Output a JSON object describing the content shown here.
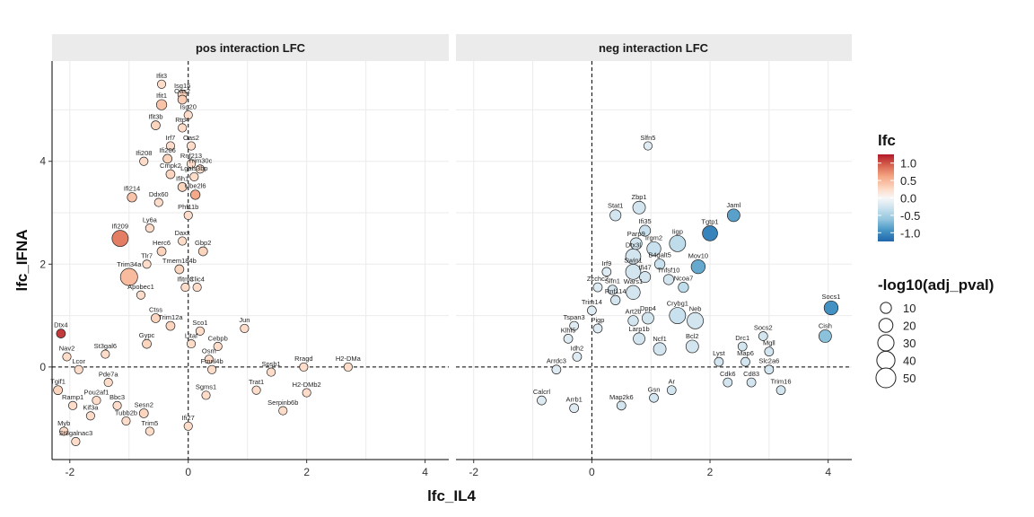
{
  "chart_data": {
    "type": "scatter",
    "xlabel": "lfc_IL4",
    "ylabel": "lfc_IFNA",
    "xlim": [
      -2.3,
      4.4
    ],
    "ylim": [
      -1.8,
      5.95
    ],
    "x_ticks": [
      -2,
      0,
      2,
      4
    ],
    "y_ticks": [
      0,
      2,
      4
    ],
    "grid": true,
    "reference_lines": {
      "x": 0,
      "y": 0,
      "style": "dashed"
    },
    "color_legend": {
      "title": "lfc",
      "breaks": [
        1.0,
        0.5,
        0.0,
        -0.5,
        -1.0
      ],
      "labels": [
        "1.0",
        "0.5",
        "0.0",
        "-0.5",
        "-1.0"
      ],
      "range": [
        -1.25,
        1.25
      ],
      "colors": [
        "#2166ac",
        "#4393c3",
        "#92c5de",
        "#d1e5f0",
        "#f7f7f7",
        "#fddbc7",
        "#f4a582",
        "#d6604d",
        "#b2182b"
      ]
    },
    "size_legend": {
      "title": "-log10(adj_pval)",
      "breaks": [
        10,
        20,
        30,
        40,
        50
      ],
      "labels": [
        "10",
        "20",
        "30",
        "40",
        "50"
      ]
    },
    "legend_position": "right",
    "panels": [
      {
        "title": "pos interaction LFC",
        "labeled_points": [
          {
            "label": "Ifit3",
            "x": -0.45,
            "y": 5.5,
            "lfc": 0.3,
            "p": 4
          },
          {
            "label": "Isg15",
            "x": -0.1,
            "y": 5.3,
            "lfc": 0.35,
            "p": 5
          },
          {
            "label": "Oas2",
            "x": -0.1,
            "y": 5.2,
            "lfc": 0.4,
            "p": 5
          },
          {
            "label": "Ifit1",
            "x": -0.45,
            "y": 5.1,
            "lfc": 0.45,
            "p": 8
          },
          {
            "label": "Isg20",
            "x": 0.0,
            "y": 4.9,
            "lfc": 0.3,
            "p": 4
          },
          {
            "label": "Rtp4",
            "x": -0.1,
            "y": 4.65,
            "lfc": 0.3,
            "p": 4
          },
          {
            "label": "Ifit3b",
            "x": -0.55,
            "y": 4.7,
            "lfc": 0.35,
            "p": 5
          },
          {
            "label": "Irf7",
            "x": -0.3,
            "y": 4.3,
            "lfc": 0.3,
            "p": 4
          },
          {
            "label": "Oas2",
            "x": 0.05,
            "y": 4.3,
            "lfc": 0.3,
            "p": 4
          },
          {
            "label": "Ifi206",
            "x": -0.35,
            "y": 4.05,
            "lfc": 0.35,
            "p": 5
          },
          {
            "label": "Ifi208",
            "x": -0.75,
            "y": 4.0,
            "lfc": 0.3,
            "p": 4
          },
          {
            "label": "Rnf213",
            "x": 0.05,
            "y": 3.95,
            "lfc": 0.3,
            "p": 4
          },
          {
            "label": "Trim30c",
            "x": 0.2,
            "y": 3.85,
            "lfc": 0.3,
            "p": 4
          },
          {
            "label": "Cmpk2",
            "x": -0.3,
            "y": 3.75,
            "lfc": 0.35,
            "p": 5
          },
          {
            "label": "Lgals3bp",
            "x": 0.1,
            "y": 3.7,
            "lfc": 0.3,
            "p": 4
          },
          {
            "label": "Ifih1",
            "x": -0.1,
            "y": 3.5,
            "lfc": 0.35,
            "p": 5
          },
          {
            "label": "Ifi214",
            "x": -0.95,
            "y": 3.3,
            "lfc": 0.45,
            "p": 6
          },
          {
            "label": "Ube2l6",
            "x": 0.12,
            "y": 3.35,
            "lfc": 0.6,
            "p": 6
          },
          {
            "label": "Ddx60",
            "x": -0.5,
            "y": 3.2,
            "lfc": 0.3,
            "p": 4
          },
          {
            "label": "Phf11b",
            "x": 0.0,
            "y": 2.95,
            "lfc": 0.3,
            "p": 4
          },
          {
            "label": "Ly6a",
            "x": -0.65,
            "y": 2.7,
            "lfc": 0.3,
            "p": 4
          },
          {
            "label": "Ifi209",
            "x": -1.15,
            "y": 2.5,
            "lfc": 0.8,
            "p": 30
          },
          {
            "label": "Daxx",
            "x": -0.1,
            "y": 2.45,
            "lfc": 0.3,
            "p": 4
          },
          {
            "label": "Herc6",
            "x": -0.45,
            "y": 2.25,
            "lfc": 0.35,
            "p": 5
          },
          {
            "label": "Gbp2",
            "x": 0.25,
            "y": 2.25,
            "lfc": 0.35,
            "p": 5
          },
          {
            "label": "Tlr7",
            "x": -0.7,
            "y": 2.0,
            "lfc": 0.3,
            "p": 4
          },
          {
            "label": "Trim34a",
            "x": -1.0,
            "y": 1.75,
            "lfc": 0.5,
            "p": 35
          },
          {
            "label": "Tmem184b",
            "x": -0.15,
            "y": 1.9,
            "lfc": 0.35,
            "p": 5
          },
          {
            "label": "Ifitm3",
            "x": -0.05,
            "y": 1.55,
            "lfc": 0.3,
            "p": 4
          },
          {
            "label": "Clic4",
            "x": 0.15,
            "y": 1.55,
            "lfc": 0.3,
            "p": 4
          },
          {
            "label": "Apobec1",
            "x": -0.8,
            "y": 1.4,
            "lfc": 0.3,
            "p": 4
          },
          {
            "label": "Ctss",
            "x": -0.55,
            "y": 0.95,
            "lfc": 0.35,
            "p": 5
          },
          {
            "label": "Trim12a",
            "x": -0.3,
            "y": 0.8,
            "lfc": 0.35,
            "p": 5
          },
          {
            "label": "Sco1",
            "x": 0.2,
            "y": 0.7,
            "lfc": 0.3,
            "p": 4
          },
          {
            "label": "Jun",
            "x": 0.95,
            "y": 0.75,
            "lfc": 0.3,
            "p": 4
          },
          {
            "label": "Dtx4",
            "x": -2.15,
            "y": 0.65,
            "lfc": 1.1,
            "p": 5
          },
          {
            "label": "Litaf",
            "x": 0.05,
            "y": 0.45,
            "lfc": 0.3,
            "p": 4
          },
          {
            "label": "Gypc",
            "x": -0.7,
            "y": 0.45,
            "lfc": 0.35,
            "p": 5
          },
          {
            "label": "Cebpb",
            "x": 0.5,
            "y": 0.4,
            "lfc": 0.3,
            "p": 4
          },
          {
            "label": "St3gal6",
            "x": -1.4,
            "y": 0.25,
            "lfc": 0.3,
            "p": 4
          },
          {
            "label": "Osm",
            "x": 0.35,
            "y": 0.15,
            "lfc": 0.3,
            "p": 4
          },
          {
            "label": "Rragd",
            "x": 1.95,
            "y": 0.0,
            "lfc": 0.3,
            "p": 4
          },
          {
            "label": "H2-DMa",
            "x": 2.7,
            "y": 0.0,
            "lfc": 0.3,
            "p": 4
          },
          {
            "label": "Nav2",
            "x": -2.05,
            "y": 0.2,
            "lfc": 0.3,
            "p": 4
          },
          {
            "label": "Lcor",
            "x": -1.85,
            "y": -0.05,
            "lfc": 0.3,
            "p": 4
          },
          {
            "label": "Fmnl4b",
            "x": 0.4,
            "y": -0.05,
            "lfc": 0.3,
            "p": 4
          },
          {
            "label": "Spsb1",
            "x": 1.4,
            "y": -0.1,
            "lfc": 0.3,
            "p": 4
          },
          {
            "label": "Pde7a",
            "x": -1.35,
            "y": -0.3,
            "lfc": 0.3,
            "p": 4
          },
          {
            "label": "Tgif1",
            "x": -2.2,
            "y": -0.45,
            "lfc": 0.35,
            "p": 5
          },
          {
            "label": "H2-DMb2",
            "x": 2.0,
            "y": -0.5,
            "lfc": 0.3,
            "p": 4
          },
          {
            "label": "Trat1",
            "x": 1.15,
            "y": -0.45,
            "lfc": 0.3,
            "p": 4
          },
          {
            "label": "Sgms1",
            "x": 0.3,
            "y": -0.55,
            "lfc": 0.3,
            "p": 4
          },
          {
            "label": "Ramp1",
            "x": -1.95,
            "y": -0.75,
            "lfc": 0.3,
            "p": 4
          },
          {
            "label": "Pou2af1",
            "x": -1.55,
            "y": -0.65,
            "lfc": 0.3,
            "p": 4
          },
          {
            "label": "Bbc3",
            "x": -1.2,
            "y": -0.75,
            "lfc": 0.3,
            "p": 4
          },
          {
            "label": "Serpinb6b",
            "x": 1.6,
            "y": -0.85,
            "lfc": 0.3,
            "p": 4
          },
          {
            "label": "Sesn2",
            "x": -0.75,
            "y": -0.9,
            "lfc": 0.35,
            "p": 5
          },
          {
            "label": "Kif3a",
            "x": -1.65,
            "y": -0.95,
            "lfc": 0.3,
            "p": 4
          },
          {
            "label": "Tubb2b",
            "x": -1.05,
            "y": -1.05,
            "lfc": 0.3,
            "p": 4
          },
          {
            "label": "Myb",
            "x": -2.1,
            "y": -1.25,
            "lfc": 0.3,
            "p": 4
          },
          {
            "label": "Trim5",
            "x": -0.65,
            "y": -1.25,
            "lfc": 0.3,
            "p": 4
          },
          {
            "label": "Ifi27",
            "x": 0.0,
            "y": -1.15,
            "lfc": 0.3,
            "p": 4
          },
          {
            "label": "St8galnac3",
            "x": -1.9,
            "y": -1.45,
            "lfc": 0.3,
            "p": 4
          }
        ]
      },
      {
        "title": "neg interaction LFC",
        "labeled_points": [
          {
            "label": "Slfn5",
            "x": 0.95,
            "y": 4.3,
            "lfc": -0.2,
            "p": 4
          },
          {
            "label": "Zbp1",
            "x": 0.8,
            "y": 3.1,
            "lfc": -0.3,
            "p": 15
          },
          {
            "label": "Stat1",
            "x": 0.4,
            "y": 2.95,
            "lfc": -0.3,
            "p": 10
          },
          {
            "label": "Jaml",
            "x": 2.4,
            "y": 2.95,
            "lfc": -0.85,
            "p": 15
          },
          {
            "label": "Ifi35",
            "x": 0.9,
            "y": 2.65,
            "lfc": -0.35,
            "p": 10
          },
          {
            "label": "Tgtp1",
            "x": 2.0,
            "y": 2.6,
            "lfc": -1.05,
            "p": 25
          },
          {
            "label": "Iigp",
            "x": 1.45,
            "y": 2.4,
            "lfc": -0.4,
            "p": 30
          },
          {
            "label": "Parp9",
            "x": 0.75,
            "y": 2.4,
            "lfc": -0.3,
            "p": 12
          },
          {
            "label": "Irgm2",
            "x": 1.05,
            "y": 2.3,
            "lfc": -0.35,
            "p": 20
          },
          {
            "label": "Dtx3l",
            "x": 0.7,
            "y": 2.15,
            "lfc": -0.3,
            "p": 25
          },
          {
            "label": "B4galt5",
            "x": 1.15,
            "y": 2.0,
            "lfc": -0.35,
            "p": 8
          },
          {
            "label": "Mov10",
            "x": 1.8,
            "y": 1.95,
            "lfc": -0.8,
            "p": 20
          },
          {
            "label": "Irf9",
            "x": 0.25,
            "y": 1.85,
            "lfc": -0.2,
            "p": 5
          },
          {
            "label": "Swin1",
            "x": 0.7,
            "y": 1.85,
            "lfc": -0.3,
            "p": 25
          },
          {
            "label": "Ifi47",
            "x": 0.9,
            "y": 1.75,
            "lfc": -0.3,
            "p": 10
          },
          {
            "label": "Tnfsf10",
            "x": 1.3,
            "y": 1.7,
            "lfc": -0.3,
            "p": 8
          },
          {
            "label": "Zcchc2",
            "x": 0.1,
            "y": 1.55,
            "lfc": -0.2,
            "p": 5
          },
          {
            "label": "Slfn1",
            "x": 0.35,
            "y": 1.5,
            "lfc": -0.3,
            "p": 6
          },
          {
            "label": "Ncoa7",
            "x": 1.55,
            "y": 1.55,
            "lfc": -0.4,
            "p": 8
          },
          {
            "label": "Wars1",
            "x": 0.7,
            "y": 1.45,
            "lfc": -0.3,
            "p": 20
          },
          {
            "label": "Rnf114",
            "x": 0.4,
            "y": 1.3,
            "lfc": -0.3,
            "p": 6
          },
          {
            "label": "Socs1",
            "x": 4.05,
            "y": 1.15,
            "lfc": -0.95,
            "p": 20
          },
          {
            "label": "Trim14",
            "x": 0.0,
            "y": 1.1,
            "lfc": -0.2,
            "p": 5
          },
          {
            "label": "Crybg1",
            "x": 1.45,
            "y": 1.0,
            "lfc": -0.35,
            "p": 30
          },
          {
            "label": "Neb",
            "x": 1.75,
            "y": 0.9,
            "lfc": -0.3,
            "p": 30
          },
          {
            "label": "Dpp4",
            "x": 0.95,
            "y": 0.95,
            "lfc": -0.3,
            "p": 12
          },
          {
            "label": "Art2b",
            "x": 0.7,
            "y": 0.9,
            "lfc": -0.3,
            "p": 8
          },
          {
            "label": "Tspan3",
            "x": -0.3,
            "y": 0.8,
            "lfc": -0.2,
            "p": 5
          },
          {
            "label": "Pigp",
            "x": 0.1,
            "y": 0.75,
            "lfc": -0.2,
            "p": 5
          },
          {
            "label": "Socs2",
            "x": 2.9,
            "y": 0.6,
            "lfc": -0.3,
            "p": 5
          },
          {
            "label": "Cish",
            "x": 3.95,
            "y": 0.6,
            "lfc": -0.65,
            "p": 15
          },
          {
            "label": "Klhl5",
            "x": -0.4,
            "y": 0.55,
            "lfc": -0.2,
            "p": 5
          },
          {
            "label": "Larp1b",
            "x": 0.8,
            "y": 0.55,
            "lfc": -0.3,
            "p": 12
          },
          {
            "label": "Ncf1",
            "x": 1.15,
            "y": 0.35,
            "lfc": -0.3,
            "p": 15
          },
          {
            "label": "Bcl2",
            "x": 1.7,
            "y": 0.4,
            "lfc": -0.3,
            "p": 15
          },
          {
            "label": "Drc1",
            "x": 2.55,
            "y": 0.4,
            "lfc": -0.3,
            "p": 5
          },
          {
            "label": "Mgll",
            "x": 3.0,
            "y": 0.3,
            "lfc": -0.3,
            "p": 5
          },
          {
            "label": "Idh2",
            "x": -0.25,
            "y": 0.2,
            "lfc": -0.2,
            "p": 5
          },
          {
            "label": "Lyst",
            "x": 2.15,
            "y": 0.1,
            "lfc": -0.3,
            "p": 5
          },
          {
            "label": "Map6",
            "x": 2.6,
            "y": 0.1,
            "lfc": -0.3,
            "p": 5
          },
          {
            "label": "Arrdc3",
            "x": -0.6,
            "y": -0.05,
            "lfc": -0.2,
            "p": 5
          },
          {
            "label": "Slc2a6",
            "x": 3.0,
            "y": -0.05,
            "lfc": -0.3,
            "p": 5
          },
          {
            "label": "Cdk6",
            "x": 2.3,
            "y": -0.3,
            "lfc": -0.3,
            "p": 5
          },
          {
            "label": "Cd83",
            "x": 2.7,
            "y": -0.3,
            "lfc": -0.3,
            "p": 5
          },
          {
            "label": "Ar",
            "x": 1.35,
            "y": -0.45,
            "lfc": -0.3,
            "p": 5
          },
          {
            "label": "Trim16",
            "x": 3.2,
            "y": -0.45,
            "lfc": -0.3,
            "p": 5
          },
          {
            "label": "Gsn",
            "x": 1.05,
            "y": -0.6,
            "lfc": -0.3,
            "p": 5
          },
          {
            "label": "Calcrl",
            "x": -0.85,
            "y": -0.65,
            "lfc": -0.2,
            "p": 5
          },
          {
            "label": "Map2k6",
            "x": 0.5,
            "y": -0.75,
            "lfc": -0.3,
            "p": 5
          },
          {
            "label": "Arrb1",
            "x": -0.3,
            "y": -0.8,
            "lfc": -0.2,
            "p": 5
          }
        ]
      }
    ]
  }
}
